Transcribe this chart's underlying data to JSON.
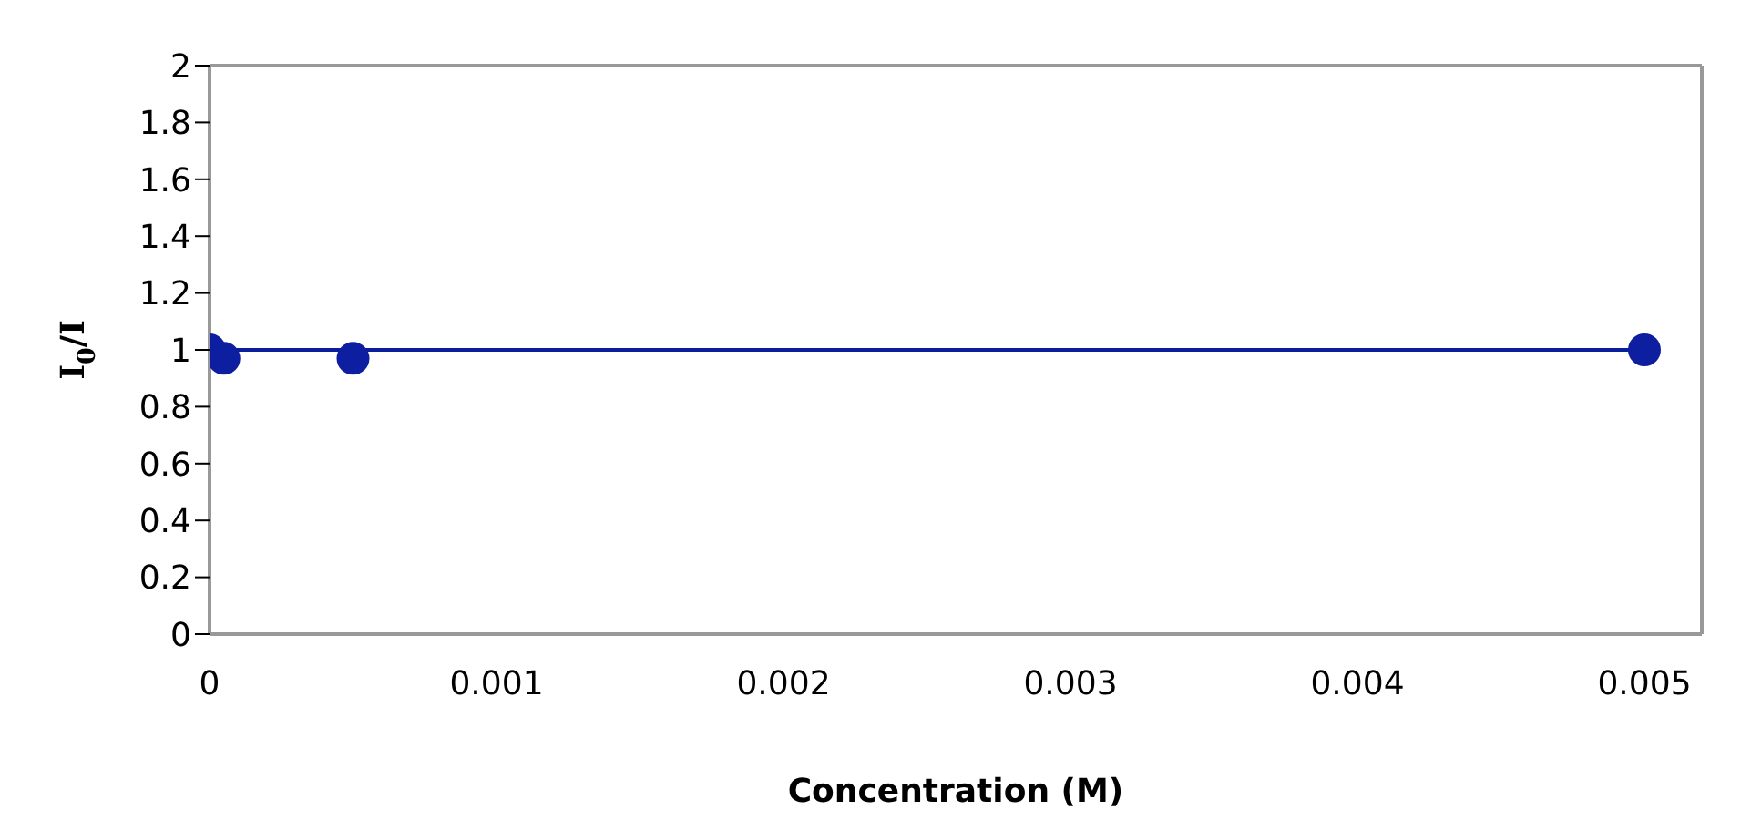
{
  "chart_data": {
    "type": "scatter",
    "xlabel": "Concentration (M)",
    "ylabel": "I$_{0}$/I",
    "xlim": [
      0,
      0.0052
    ],
    "xticks": [
      0,
      0.001,
      0.002,
      0.003,
      0.004,
      0.005
    ],
    "ylim": [
      0,
      2
    ],
    "yticks": [
      0,
      0.2,
      0.4,
      0.6,
      0.8,
      1,
      1.2,
      1.4,
      1.6,
      1.8,
      2
    ],
    "grid": false,
    "series": [
      {
        "type": "line",
        "color": "#0a1e9c",
        "marker": "none",
        "line_style": "solid",
        "x": [
          0,
          0.005
        ],
        "values": [
          1,
          1
        ]
      },
      {
        "color": "#0d1ea0",
        "marker": "circle",
        "x": [
          0,
          5e-05,
          0.0005,
          0.005
        ],
        "values": [
          1,
          0.97,
          0.97,
          1
        ]
      }
    ]
  }
}
